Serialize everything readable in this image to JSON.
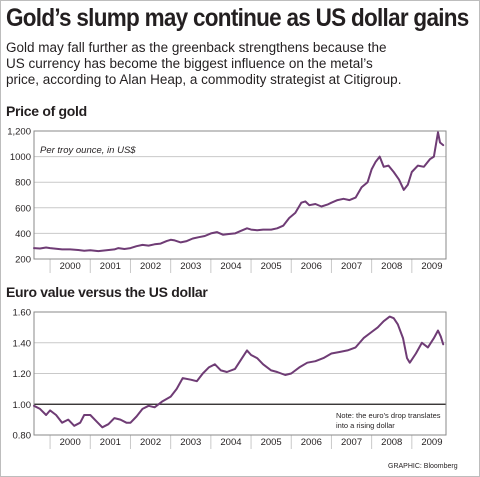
{
  "headline": "Gold’s slump may continue as US dollar gains",
  "intro_lines": [
    "Gold may fall further as the greenback strengthens because the",
    "US currency has become the biggest influence on the metal’s",
    "price, according to Alan Heap, a commodity strategist at Citigroup."
  ],
  "credit": "GRAPHIC: Bloomberg",
  "colors": {
    "line": "#6f3c75",
    "grid": "#c9c9c9",
    "plot_background": "#ffffff",
    "reference_line": "#231f20",
    "text": "#231f20"
  },
  "chart_data": [
    {
      "type": "line",
      "title": "Price of gold",
      "annotation": "Per troy ounce, in US$",
      "xlabel": "",
      "ylabel": "",
      "x_ticks": [
        "2000",
        "2001",
        "2002",
        "2003",
        "2004",
        "2005",
        "2006",
        "2007",
        "2008",
        "2009"
      ],
      "y_ticks": [
        "200",
        "400",
        "600",
        "800",
        "1000",
        "1,200"
      ],
      "xlim": [
        1999.6,
        2009.85
      ],
      "ylim": [
        200,
        1200
      ],
      "grid": "horizontal",
      "legend": "none",
      "series": [
        {
          "x": [
            1999.6,
            1999.75,
            1999.9,
            2000.0,
            2000.15,
            2000.3,
            2000.5,
            2000.7,
            2000.85,
            2001.0,
            2001.2,
            2001.4,
            2001.6,
            2001.7,
            2001.85,
            2002.0,
            2002.15,
            2002.3,
            2002.45,
            2002.6,
            2002.75,
            2002.9,
            2003.0,
            2003.1,
            2003.25,
            2003.4,
            2003.55,
            2003.7,
            2003.85,
            2004.0,
            2004.15,
            2004.3,
            2004.45,
            2004.6,
            2004.75,
            2004.9,
            2005.0,
            2005.15,
            2005.3,
            2005.5,
            2005.65,
            2005.8,
            2005.95,
            2006.1,
            2006.25,
            2006.35,
            2006.45,
            2006.6,
            2006.75,
            2006.9,
            2007.0,
            2007.15,
            2007.3,
            2007.45,
            2007.6,
            2007.75,
            2007.9,
            2008.0,
            2008.1,
            2008.2,
            2008.3,
            2008.42,
            2008.55,
            2008.68,
            2008.8,
            2008.9,
            2009.0,
            2009.15,
            2009.3,
            2009.45,
            2009.55,
            2009.65,
            2009.7,
            2009.78
          ],
          "y": [
            285,
            282,
            290,
            285,
            280,
            275,
            275,
            270,
            265,
            268,
            262,
            268,
            275,
            285,
            278,
            285,
            300,
            310,
            305,
            315,
            320,
            340,
            350,
            345,
            330,
            340,
            360,
            370,
            380,
            400,
            410,
            390,
            395,
            400,
            420,
            440,
            430,
            425,
            430,
            430,
            440,
            460,
            520,
            560,
            640,
            650,
            620,
            630,
            610,
            625,
            640,
            660,
            670,
            660,
            680,
            760,
            800,
            900,
            960,
            1000,
            920,
            930,
            880,
            820,
            740,
            780,
            880,
            930,
            920,
            980,
            1000,
            1190,
            1110,
            1090
          ]
        }
      ]
    },
    {
      "type": "line",
      "title": "Euro value versus the US dollar",
      "annotation": "Note: the euro’s drop translates into a rising dollar",
      "xlabel": "",
      "ylabel": "",
      "x_ticks": [
        "2000",
        "2001",
        "2002",
        "2003",
        "2004",
        "2005",
        "2006",
        "2007",
        "2008",
        "2009"
      ],
      "y_ticks": [
        "0.80",
        "1.00",
        "1.20",
        "1.40",
        "1.60"
      ],
      "xlim": [
        1999.6,
        2009.85
      ],
      "ylim": [
        0.8,
        1.6
      ],
      "grid": "horizontal",
      "legend": "none",
      "reference_line": 1.0,
      "series": [
        {
          "x": [
            1999.6,
            1999.75,
            1999.9,
            2000.0,
            2000.15,
            2000.3,
            2000.45,
            2000.6,
            2000.75,
            2000.85,
            2001.0,
            2001.15,
            2001.3,
            2001.45,
            2001.6,
            2001.75,
            2001.9,
            2002.0,
            2002.15,
            2002.3,
            2002.45,
            2002.6,
            2002.8,
            2003.0,
            2003.15,
            2003.3,
            2003.5,
            2003.65,
            2003.8,
            2003.95,
            2004.1,
            2004.25,
            2004.4,
            2004.6,
            2004.75,
            2004.9,
            2005.0,
            2005.15,
            2005.3,
            2005.5,
            2005.65,
            2005.85,
            2006.0,
            2006.2,
            2006.4,
            2006.6,
            2006.8,
            2007.0,
            2007.2,
            2007.4,
            2007.6,
            2007.8,
            2008.0,
            2008.15,
            2008.3,
            2008.45,
            2008.55,
            2008.65,
            2008.78,
            2008.88,
            2008.95,
            2009.1,
            2009.25,
            2009.4,
            2009.55,
            2009.65,
            2009.72,
            2009.78
          ],
          "y": [
            0.99,
            0.97,
            0.93,
            0.96,
            0.93,
            0.88,
            0.9,
            0.86,
            0.88,
            0.93,
            0.93,
            0.89,
            0.85,
            0.87,
            0.91,
            0.9,
            0.88,
            0.88,
            0.92,
            0.97,
            0.99,
            0.98,
            1.02,
            1.05,
            1.1,
            1.17,
            1.16,
            1.15,
            1.2,
            1.24,
            1.26,
            1.22,
            1.21,
            1.23,
            1.29,
            1.35,
            1.32,
            1.3,
            1.26,
            1.22,
            1.21,
            1.19,
            1.2,
            1.24,
            1.27,
            1.28,
            1.3,
            1.33,
            1.34,
            1.35,
            1.37,
            1.43,
            1.47,
            1.5,
            1.54,
            1.57,
            1.56,
            1.52,
            1.43,
            1.3,
            1.27,
            1.33,
            1.4,
            1.37,
            1.43,
            1.48,
            1.44,
            1.39
          ]
        }
      ]
    }
  ]
}
